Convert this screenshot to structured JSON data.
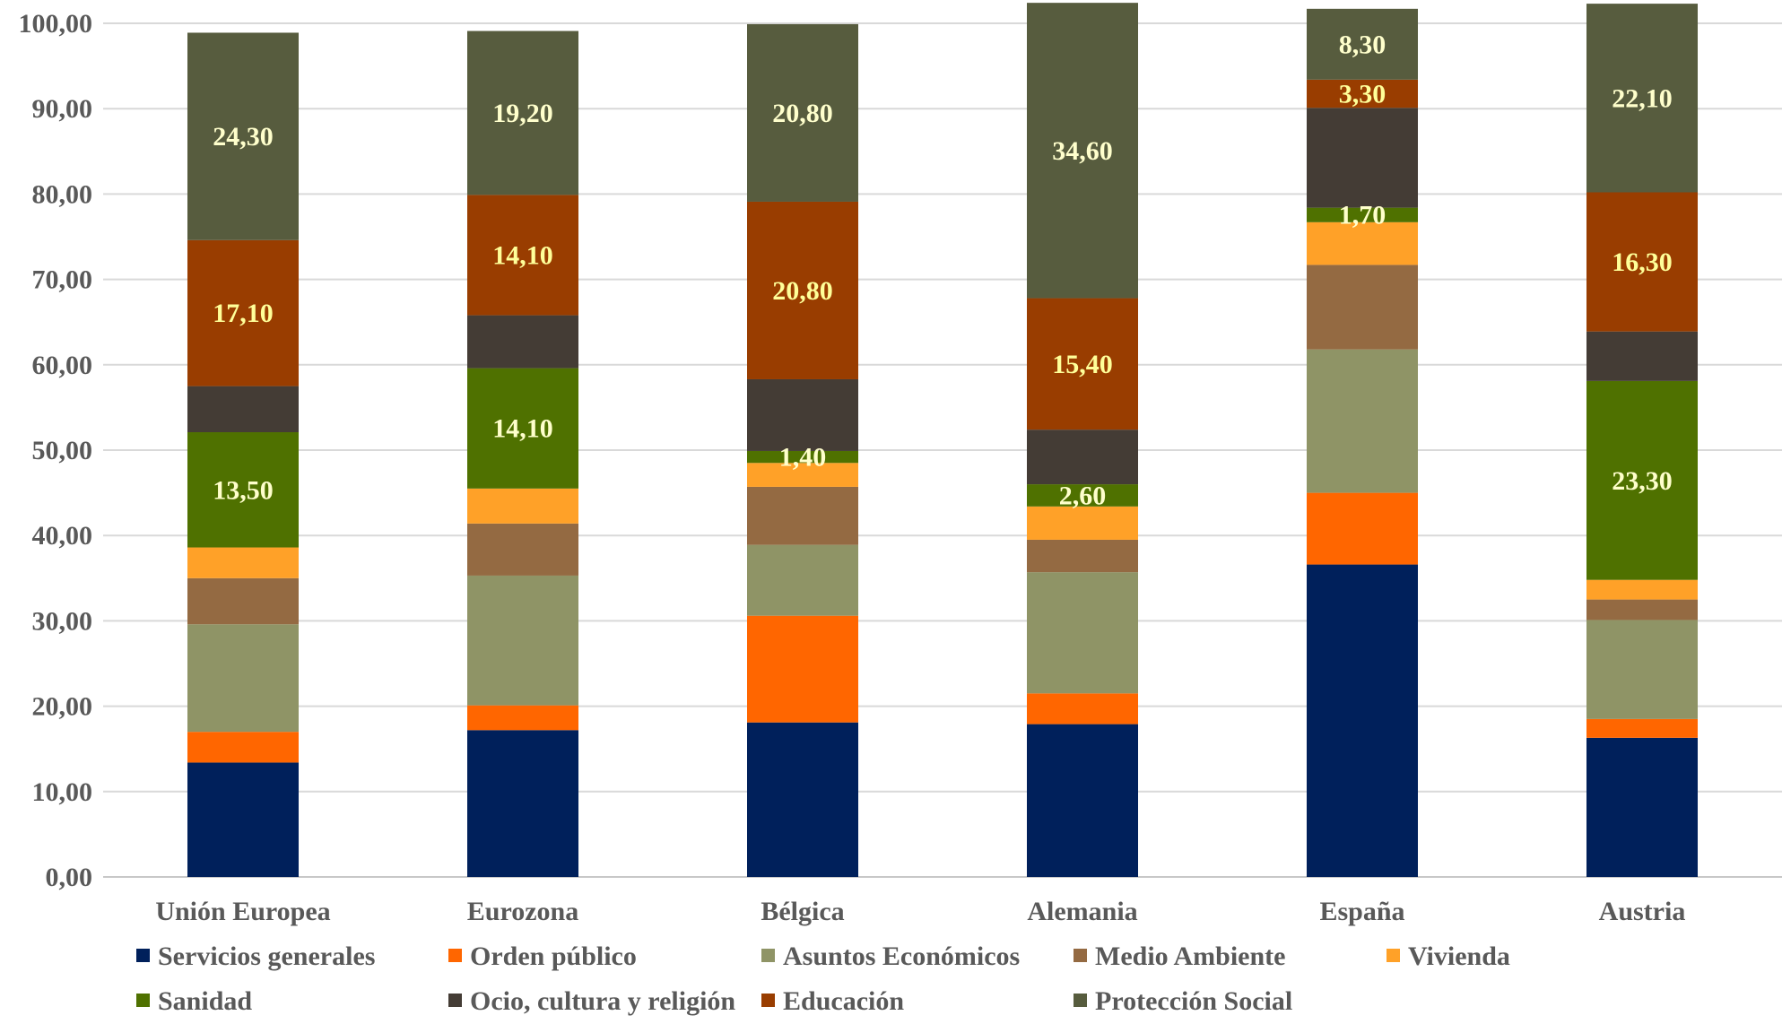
{
  "chart_data": {
    "type": "bar",
    "stacked": true,
    "categories": [
      "Unión Europea",
      "Eurozona",
      "Bélgica",
      "Alemania",
      "España",
      "Austria"
    ],
    "ylim": [
      0,
      100
    ],
    "yticks": [
      "0,00",
      "10,00",
      "20,00",
      "30,00",
      "40,00",
      "50,00",
      "60,00",
      "70,00",
      "80,00",
      "90,00",
      "100,00"
    ],
    "grid": true,
    "legend_position": "bottom",
    "series": [
      {
        "name": "Servicios generales",
        "color": "#00205B",
        "values": [
          13.4,
          17.2,
          18.1,
          17.9,
          36.6,
          16.3
        ]
      },
      {
        "name": "Orden público",
        "color": "#FF6600",
        "values": [
          3.6,
          2.9,
          12.5,
          3.6,
          8.4,
          2.2
        ]
      },
      {
        "name": "Asuntos Económicos",
        "color": "#8F9466",
        "values": [
          12.6,
          15.2,
          8.3,
          14.2,
          16.8,
          11.6
        ]
      },
      {
        "name": "Medio Ambiente",
        "color": "#946A42",
        "values": [
          5.4,
          6.1,
          6.8,
          3.8,
          9.9,
          2.4
        ]
      },
      {
        "name": "Vivienda",
        "color": "#FFA128",
        "values": [
          3.6,
          4.1,
          2.8,
          3.9,
          5.0,
          2.3
        ]
      },
      {
        "name": "Sanidad",
        "color": "#4F7100",
        "values": [
          13.5,
          14.1,
          1.4,
          2.6,
          1.7,
          23.3
        ]
      },
      {
        "name": "Ocio, cultura y religión",
        "color": "#443C35",
        "values": [
          5.4,
          6.2,
          8.4,
          6.4,
          11.7,
          5.8
        ]
      },
      {
        "name": "Educación",
        "color": "#993D00",
        "values": [
          17.1,
          14.1,
          20.8,
          15.4,
          3.3,
          16.3
        ]
      },
      {
        "name": "Protección Social",
        "color": "#575C3E",
        "values": [
          24.3,
          19.2,
          20.8,
          34.6,
          8.3,
          22.1
        ]
      }
    ],
    "data_labels": [
      {
        "series": 5,
        "category": 0,
        "text": "13,50",
        "color": "#FFFFCC"
      },
      {
        "series": 7,
        "category": 0,
        "text": "17,10",
        "color": "#FFFF99"
      },
      {
        "series": 8,
        "category": 0,
        "text": "24,30",
        "color": "#FFFFCC"
      },
      {
        "series": 5,
        "category": 1,
        "text": "14,10",
        "color": "#FFFFCC"
      },
      {
        "series": 7,
        "category": 1,
        "text": "14,10",
        "color": "#FFFF99"
      },
      {
        "series": 8,
        "category": 1,
        "text": "19,20",
        "color": "#FFFFCC"
      },
      {
        "series": 5,
        "category": 2,
        "text": "1,40",
        "color": "#FFFFCC"
      },
      {
        "series": 7,
        "category": 2,
        "text": "20,80",
        "color": "#FFFF99"
      },
      {
        "series": 8,
        "category": 2,
        "text": "20,80",
        "color": "#FFFFCC"
      },
      {
        "series": 5,
        "category": 3,
        "text": "2,60",
        "color": "#FFFFCC"
      },
      {
        "series": 7,
        "category": 3,
        "text": "15,40",
        "color": "#FFFF99"
      },
      {
        "series": 8,
        "category": 3,
        "text": "34,60",
        "color": "#FFFFCC"
      },
      {
        "series": 5,
        "category": 4,
        "text": "1,70",
        "color": "#FFFFCC"
      },
      {
        "series": 7,
        "category": 4,
        "text": "3,30",
        "color": "#FFFF99"
      },
      {
        "series": 8,
        "category": 4,
        "text": "8,30",
        "color": "#FFFFCC"
      },
      {
        "series": 5,
        "category": 5,
        "text": "23,30",
        "color": "#FFFFCC"
      },
      {
        "series": 7,
        "category": 5,
        "text": "16,30",
        "color": "#FFFF99"
      },
      {
        "series": 8,
        "category": 5,
        "text": "22,10",
        "color": "#FFFFCC"
      }
    ]
  }
}
